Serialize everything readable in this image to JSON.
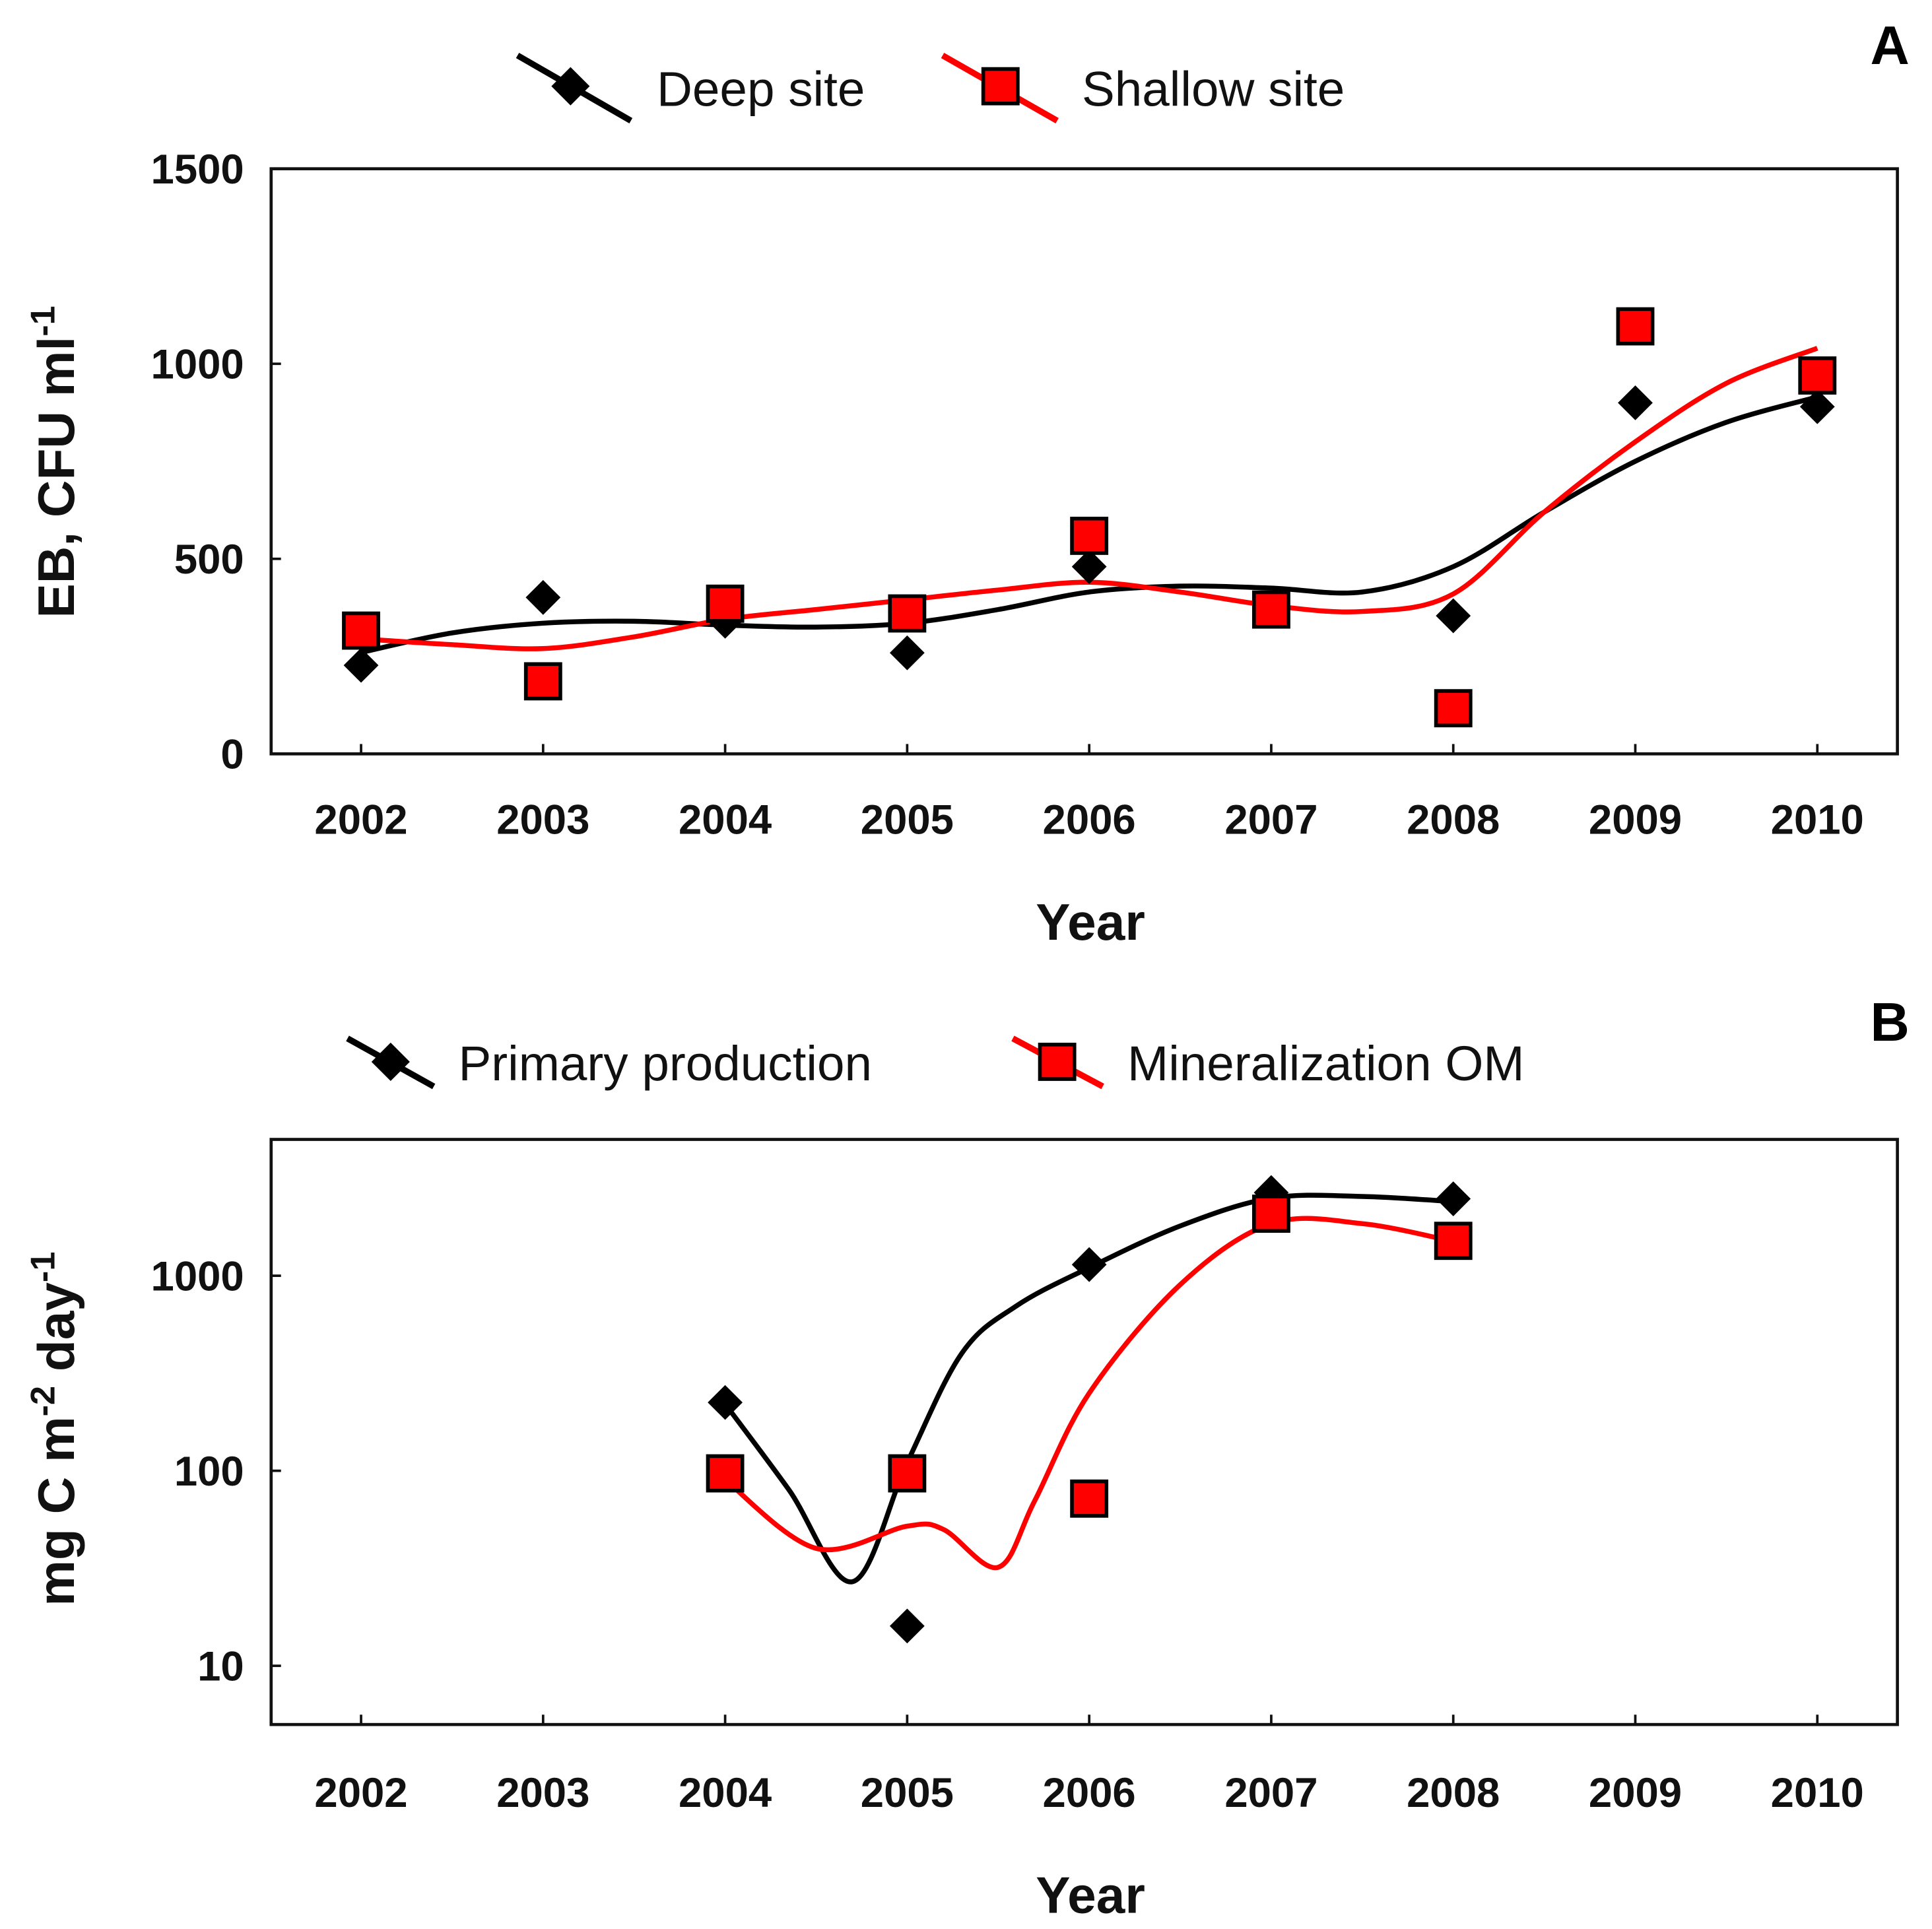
{
  "chart_data": [
    {
      "panel": "A",
      "type": "scatter",
      "scale": "linear",
      "xlabel": "Year",
      "ylabel": "EB, CFU ml",
      "ylabel_sup": "-1",
      "xlim": [
        2002,
        2010
      ],
      "ylim": [
        0,
        1500
      ],
      "yticks": [
        0,
        500,
        1000,
        1500
      ],
      "xticks": [
        2002,
        2003,
        2004,
        2005,
        2006,
        2007,
        2008,
        2009,
        2010
      ],
      "grid": false,
      "legend_placement": "top-center",
      "series": [
        {
          "name": "Deep site",
          "color": "#000000",
          "marker": "diamond",
          "x": [
            2002,
            2003,
            2004,
            2005,
            2006,
            2007,
            2008,
            2009,
            2010
          ],
          "values": [
            227,
            401,
            340,
            259,
            480,
            370,
            354,
            900,
            890
          ],
          "fit_x": [
            2002,
            2002.5,
            2003,
            2003.5,
            2004,
            2004.5,
            2005,
            2005.5,
            2006,
            2006.5,
            2007,
            2007.5,
            2008,
            2008.5,
            2009,
            2009.5,
            2010
          ],
          "fit": [
            260,
            310,
            335,
            340,
            330,
            325,
            335,
            370,
            415,
            430,
            425,
            415,
            480,
            620,
            750,
            850,
            915
          ]
        },
        {
          "name": "Shallow site",
          "color": "#ff0000",
          "marker": "square",
          "x": [
            2002,
            2003,
            2004,
            2005,
            2006,
            2007,
            2008,
            2009,
            2010
          ],
          "values": [
            316,
            186,
            385,
            360,
            559,
            370,
            117,
            1096,
            970
          ],
          "fit_x": [
            2002,
            2002.5,
            2003,
            2003.5,
            2004,
            2004.5,
            2005,
            2005.5,
            2006,
            2006.5,
            2007,
            2007.5,
            2008,
            2008.5,
            2009,
            2009.5,
            2010
          ],
          "fit": [
            295,
            280,
            270,
            300,
            345,
            370,
            395,
            420,
            440,
            415,
            380,
            365,
            410,
            620,
            800,
            950,
            1040
          ]
        }
      ]
    },
    {
      "panel": "B",
      "type": "scatter",
      "scale": "log",
      "xlabel": "Year",
      "ylabel_parts": [
        "mg C m",
        "-2",
        " day",
        "-1"
      ],
      "xlim": [
        2002,
        2010
      ],
      "ylim": [
        5,
        5000
      ],
      "yticks": [
        10,
        100,
        1000
      ],
      "xticks": [
        2002,
        2003,
        2004,
        2005,
        2006,
        2007,
        2008,
        2009,
        2010
      ],
      "grid": false,
      "legend_placement": "top-center",
      "series": [
        {
          "name": "Primary production",
          "color": "#000000",
          "marker": "diamond",
          "x": [
            2004,
            2005,
            2006,
            2007,
            2008
          ],
          "values": [
            224,
            16,
            1141,
            2670,
            2480
          ],
          "fit_x": [
            2004,
            2004.35,
            2004.7,
            2005,
            2005.3,
            2005.6,
            2006,
            2006.5,
            2007,
            2007.5,
            2008
          ],
          "fit": [
            220,
            80,
            27,
            110,
            400,
            700,
            1100,
            1800,
            2500,
            2550,
            2400
          ]
        },
        {
          "name": "Mineralization OM",
          "color": "#ff0000",
          "marker": "square",
          "x": [
            2004,
            2005,
            2006,
            2007,
            2008
          ],
          "values": [
            97,
            97,
            72,
            2080,
            1510
          ],
          "fit_x": [
            2004,
            2004.5,
            2005,
            2005.2,
            2005.5,
            2005.7,
            2006,
            2006.5,
            2007,
            2007.5,
            2008
          ],
          "fit": [
            90,
            40,
            52,
            50,
            32,
            70,
            250,
            900,
            1850,
            1850,
            1500
          ]
        }
      ]
    }
  ]
}
